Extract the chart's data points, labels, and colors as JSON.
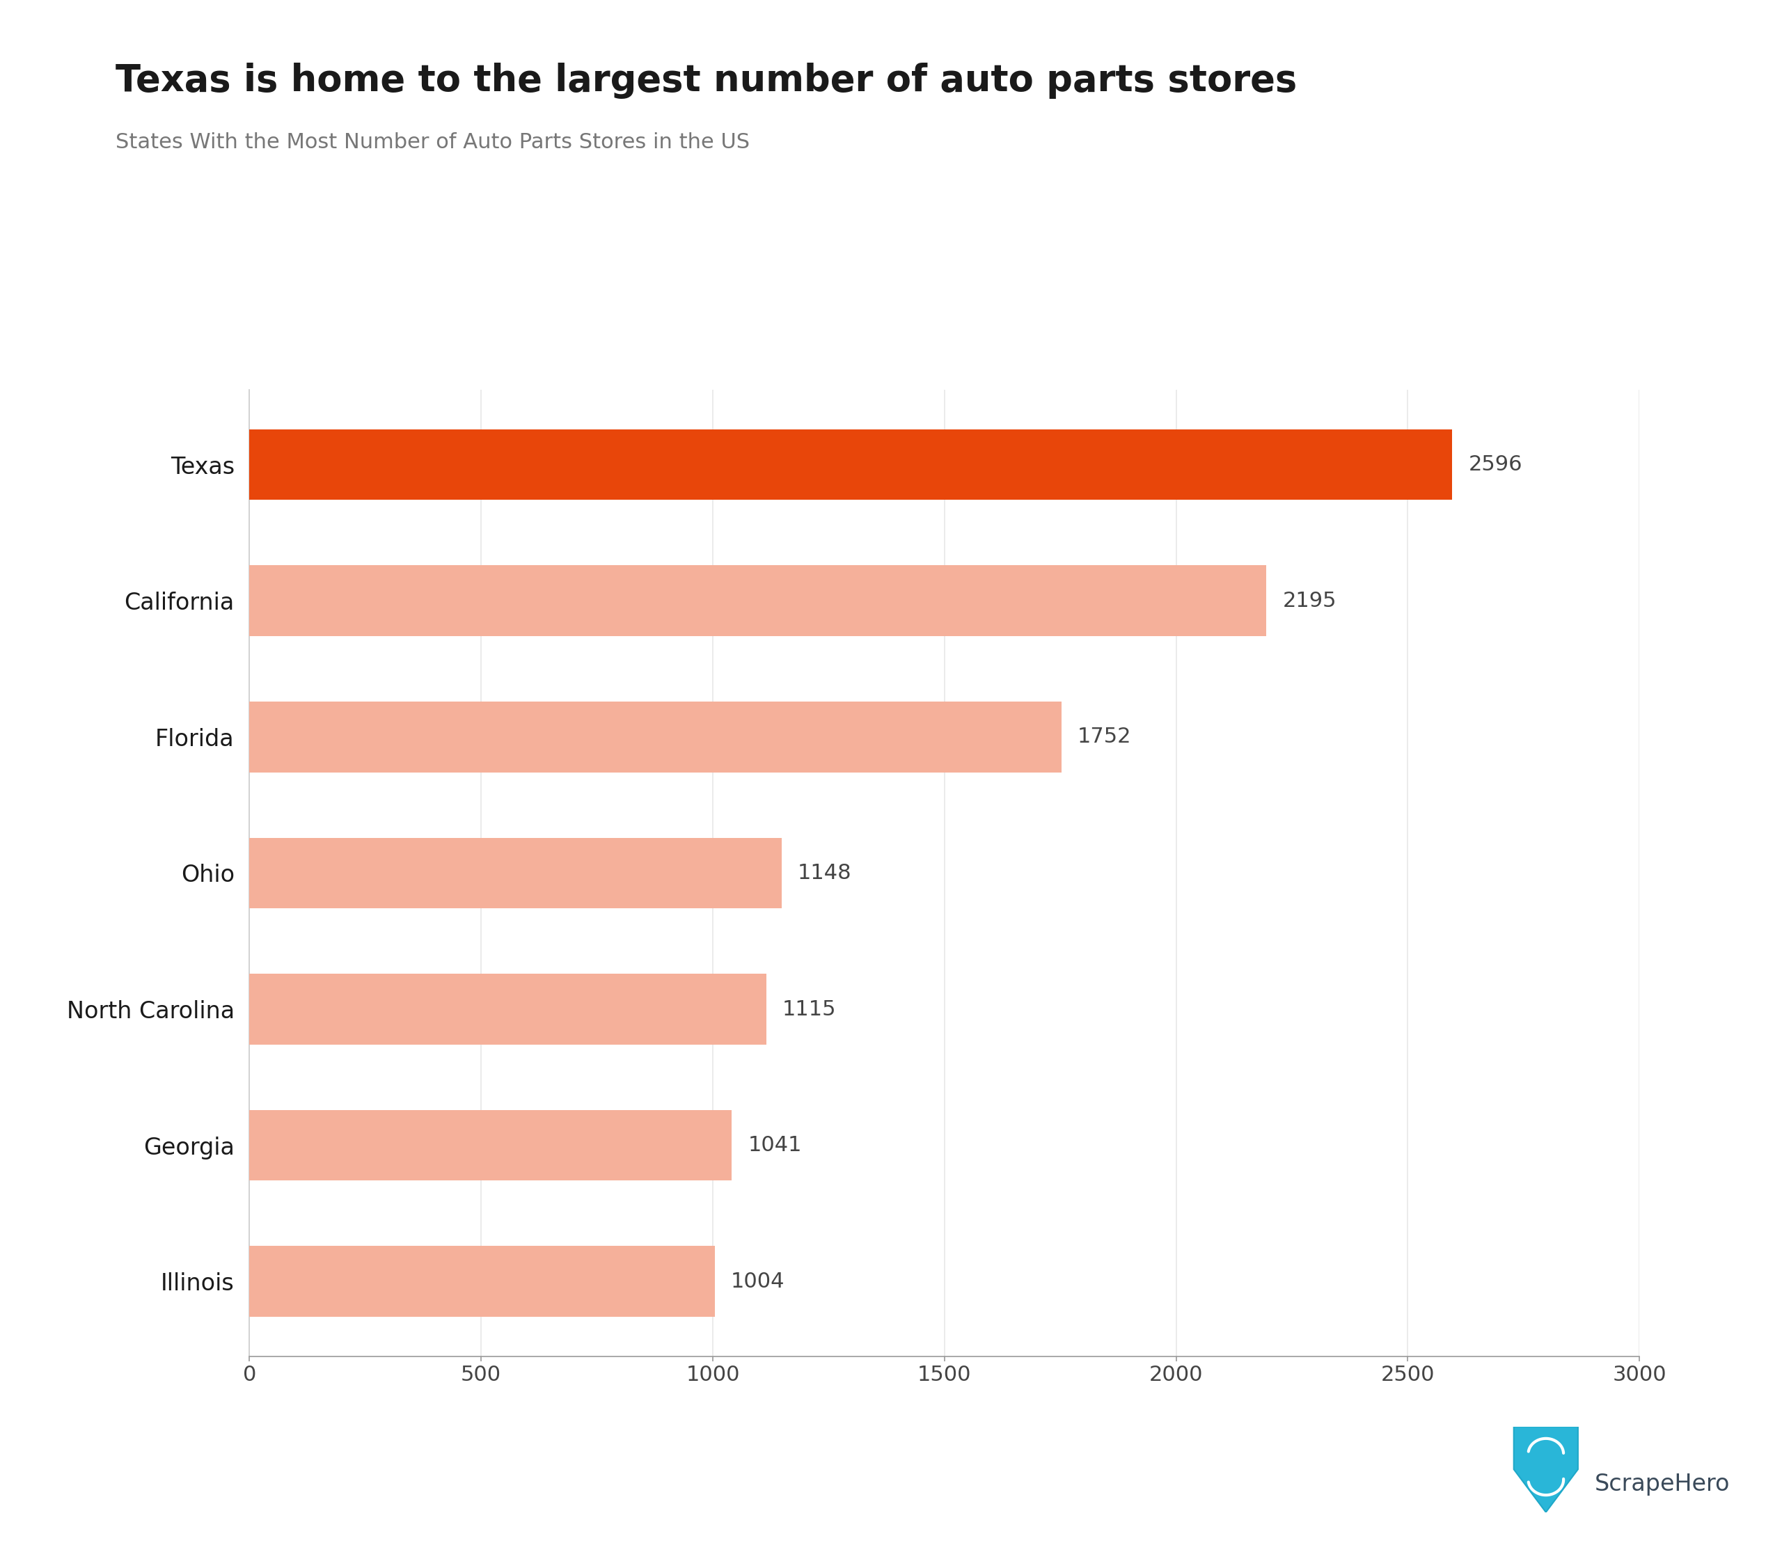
{
  "title": "Texas is home to the largest number of auto parts stores",
  "subtitle": "States With the Most Number of Auto Parts Stores in the US",
  "categories": [
    "Illinois",
    "Georgia",
    "North Carolina",
    "Ohio",
    "Florida",
    "California",
    "Texas"
  ],
  "values": [
    1004,
    1041,
    1115,
    1148,
    1752,
    2195,
    2596
  ],
  "bar_colors": [
    "#f5b09a",
    "#f5b09a",
    "#f5b09a",
    "#f5b09a",
    "#f5b09a",
    "#f5b09a",
    "#e8460a"
  ],
  "xlim": [
    0,
    3000
  ],
  "xticks": [
    0,
    500,
    1000,
    1500,
    2000,
    2500,
    3000
  ],
  "background_color": "#ffffff",
  "title_fontsize": 38,
  "subtitle_fontsize": 22,
  "label_fontsize": 24,
  "value_fontsize": 22,
  "tick_fontsize": 22,
  "bar_height": 0.52,
  "grid_color": "#e8e8e8",
  "text_color": "#1a1a1a",
  "subtitle_color": "#777777",
  "value_label_color": "#444444",
  "scrape_hero_text": "ScrapeHero",
  "scrape_hero_color": "#3a4a5a",
  "scrape_hero_icon_color": "#29b6d8"
}
